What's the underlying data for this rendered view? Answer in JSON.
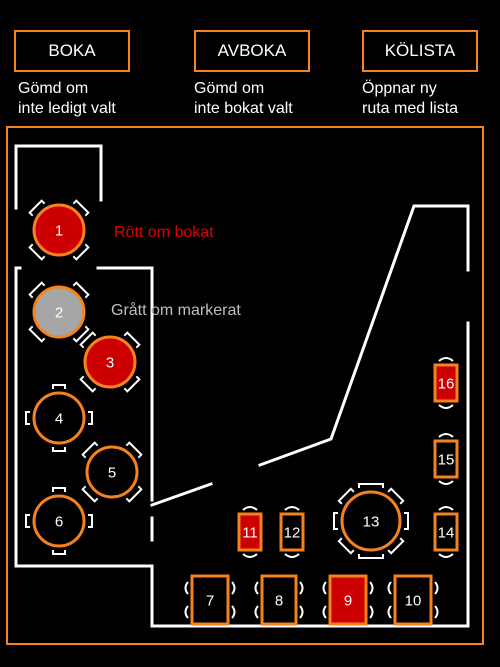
{
  "buttons": [
    {
      "label": "BOKA",
      "hint_line1": "Gömd om",
      "hint_line2": "inte ledigt valt"
    },
    {
      "label": "AVBOKA",
      "hint_line1": "Gömd om",
      "hint_line2": "inte bokat valt"
    },
    {
      "label": "KÖLISTA",
      "hint_line1": "Öppnar ny",
      "hint_line2": "ruta med lista"
    }
  ],
  "legend": {
    "booked": "Rött om bokat",
    "selected": "Grått om markerat"
  },
  "colors": {
    "accent": "#f5821f",
    "booked": "#cc0000",
    "selected": "#a6a6a6",
    "free": "#000000",
    "booked_text": "#e00000",
    "selected_text": "#bfbfbf"
  },
  "tables": [
    {
      "number": "1",
      "state": "booked"
    },
    {
      "number": "2",
      "state": "selected"
    },
    {
      "number": "3",
      "state": "booked"
    },
    {
      "number": "4",
      "state": "free"
    },
    {
      "number": "5",
      "state": "free"
    },
    {
      "number": "6",
      "state": "free"
    },
    {
      "number": "7",
      "state": "free"
    },
    {
      "number": "8",
      "state": "free"
    },
    {
      "number": "9",
      "state": "booked"
    },
    {
      "number": "10",
      "state": "free"
    },
    {
      "number": "11",
      "state": "booked"
    },
    {
      "number": "12",
      "state": "free"
    },
    {
      "number": "13",
      "state": "free"
    },
    {
      "number": "14",
      "state": "free"
    },
    {
      "number": "15",
      "state": "free"
    },
    {
      "number": "16",
      "state": "booked"
    }
  ]
}
